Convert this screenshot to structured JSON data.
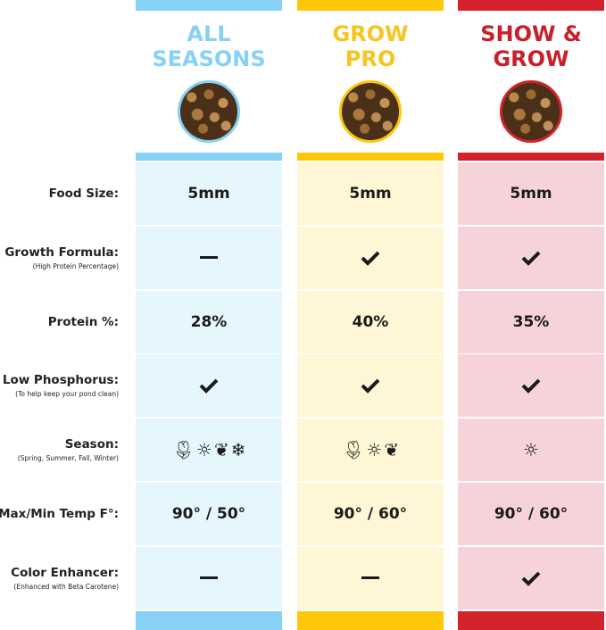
{
  "rows": [
    {
      "label": "Food Size:",
      "sub": ""
    },
    {
      "label": "Growth Formula:",
      "sub": "(High Protein Percentage)"
    },
    {
      "label": "Protein %:",
      "sub": ""
    },
    {
      "label": "Low Phosphorus:",
      "sub": "(To help keep your pond clean)"
    },
    {
      "label": "Season:",
      "sub": "(Spring, Summer, Fall, Winter)"
    },
    {
      "label": "Max/Min Temp F°:",
      "sub": ""
    },
    {
      "label": "Color Enhancer:",
      "sub": "(Enhanced with Beta Carotene)"
    }
  ],
  "products": [
    {
      "title1": "ALL",
      "title2": "SEASONS",
      "accent": "#87d1f5",
      "cell_bg": "#e5f6fd",
      "title_color": "#87d1f5",
      "values": [
        {
          "type": "text",
          "text": "5mm"
        },
        {
          "type": "dash"
        },
        {
          "type": "text",
          "text": "28%"
        },
        {
          "type": "check"
        },
        {
          "type": "seasons",
          "icons": [
            "spring-tulip",
            "summer-sun",
            "fall-leaf",
            "winter-snowflake"
          ]
        },
        {
          "type": "text",
          "text": "90° / 50°"
        },
        {
          "type": "dash"
        }
      ]
    },
    {
      "title1": "GROW",
      "title2": "PRO",
      "accent": "#fec708",
      "cell_bg": "#fff6d5",
      "title_color": "#f7c51f",
      "values": [
        {
          "type": "text",
          "text": "5mm"
        },
        {
          "type": "check"
        },
        {
          "type": "text",
          "text": "40%"
        },
        {
          "type": "check"
        },
        {
          "type": "seasons",
          "icons": [
            "spring-tulip",
            "summer-sun",
            "fall-leaf"
          ]
        },
        {
          "type": "text",
          "text": "90° / 60°"
        },
        {
          "type": "dash"
        }
      ]
    },
    {
      "title1": "SHOW &",
      "title2": "GROW",
      "accent": "#d3222a",
      "cell_bg": "#f6d3d8",
      "title_color": "#c8202a",
      "values": [
        {
          "type": "text",
          "text": "5mm"
        },
        {
          "type": "check"
        },
        {
          "type": "text",
          "text": "35%"
        },
        {
          "type": "check"
        },
        {
          "type": "seasons",
          "icons": [
            "summer-sun"
          ]
        },
        {
          "type": "text",
          "text": "90° / 60°"
        },
        {
          "type": "check"
        }
      ]
    }
  ]
}
